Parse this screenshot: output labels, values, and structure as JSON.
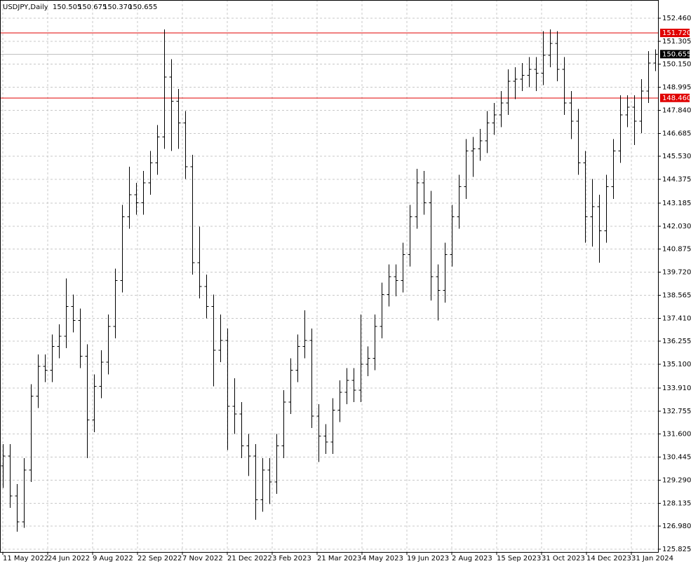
{
  "chart_data": {
    "type": "ohlc",
    "title": "USDJPY,Daily",
    "header_quotes": [
      150.505,
      150.675,
      {
        "value": 150.37,
        "label": "150.370"
      },
      150.655
    ],
    "color": "#000000",
    "grid": true,
    "x": [
      2,
      7,
      12,
      17,
      22,
      27,
      32,
      37,
      42,
      47,
      52,
      57,
      62,
      67,
      72,
      77,
      82,
      87,
      92,
      97,
      102,
      107,
      112,
      117,
      122,
      127,
      132,
      137,
      142,
      147,
      152,
      157,
      162,
      167,
      172,
      177,
      182,
      187,
      192,
      197,
      202,
      207,
      212,
      217,
      222,
      227,
      232,
      237,
      242,
      247,
      252,
      257,
      262,
      267,
      272,
      277,
      282,
      287,
      292,
      297,
      302,
      307,
      312,
      317,
      322,
      327,
      332,
      337,
      342,
      347,
      352,
      357,
      362,
      367,
      372,
      377,
      382,
      387,
      392,
      397,
      402,
      407,
      412,
      417,
      422,
      427,
      432,
      437,
      442,
      447,
      452,
      457,
      462,
      467
    ],
    "open": [
      130.0,
      130.5,
      128.5,
      127.2,
      129.8,
      133.5,
      135.0,
      134.8,
      136.0,
      136.5,
      138.0,
      137.3,
      135.5,
      132.3,
      134.0,
      135.2,
      137.0,
      139.3,
      142.5,
      143.6,
      143.2,
      144.2,
      145.2,
      146.5,
      149.5,
      148.3,
      147.2,
      145.0,
      140.2,
      139.0,
      138.0,
      135.8,
      136.3,
      133.0,
      132.6,
      131.0,
      130.5,
      128.3,
      129.8,
      129.2,
      131.0,
      133.2,
      134.8,
      136.0,
      136.3,
      132.5,
      131.5,
      131.2,
      132.8,
      133.7,
      134.3,
      133.8,
      135.1,
      135.4,
      137.0,
      138.6,
      139.5,
      139.3,
      140.6,
      142.5,
      144.2,
      143.2,
      139.5,
      138.8,
      140.6,
      142.5,
      144.0,
      145.8,
      145.9,
      146.3,
      147.2,
      147.6,
      148.2,
      149.3,
      149.4,
      149.6,
      149.9,
      149.7,
      150.6,
      151.2,
      149.9,
      148.2,
      147.3,
      145.2,
      142.5,
      143.0,
      141.8,
      144.0,
      145.8,
      147.6,
      148.0,
      147.3,
      148.8,
      150.2
    ],
    "high": [
      131.1,
      131.1,
      129.1,
      130.4,
      134.1,
      135.6,
      135.6,
      136.6,
      137.1,
      139.4,
      138.6,
      137.9,
      136.1,
      134.6,
      135.8,
      137.6,
      139.9,
      143.1,
      145.0,
      144.2,
      144.8,
      145.8,
      147.1,
      151.9,
      150.4,
      148.9,
      147.8,
      145.6,
      142.0,
      139.6,
      138.6,
      137.6,
      136.9,
      134.4,
      133.2,
      131.6,
      131.1,
      130.4,
      130.4,
      131.6,
      133.8,
      135.4,
      136.6,
      137.8,
      136.9,
      133.1,
      132.1,
      133.4,
      134.3,
      134.9,
      134.9,
      137.6,
      136.0,
      137.6,
      139.2,
      140.1,
      140.1,
      141.2,
      143.1,
      144.9,
      144.8,
      143.8,
      140.1,
      141.2,
      143.1,
      144.6,
      146.4,
      146.5,
      146.9,
      147.8,
      148.2,
      148.8,
      149.9,
      150.0,
      150.2,
      150.5,
      150.5,
      151.8,
      151.9,
      151.8,
      150.5,
      148.8,
      147.9,
      145.8,
      144.4,
      143.6,
      144.6,
      146.4,
      148.6,
      148.6,
      148.6,
      149.4,
      150.8,
      150.9
    ],
    "low": [
      128.9,
      127.9,
      126.7,
      126.9,
      129.2,
      132.9,
      134.2,
      134.2,
      135.4,
      135.9,
      136.7,
      134.9,
      130.4,
      131.7,
      133.4,
      134.6,
      136.4,
      138.7,
      141.9,
      142.6,
      142.6,
      143.6,
      144.6,
      145.9,
      145.8,
      145.9,
      144.4,
      139.6,
      138.4,
      137.4,
      134.0,
      135.2,
      130.8,
      131.6,
      130.4,
      129.5,
      127.3,
      127.7,
      128.1,
      128.6,
      130.4,
      132.6,
      134.2,
      135.4,
      131.9,
      130.2,
      130.6,
      130.6,
      132.2,
      133.1,
      133.2,
      133.2,
      134.5,
      134.8,
      136.4,
      138.0,
      138.5,
      138.7,
      140.0,
      141.9,
      142.6,
      138.3,
      137.3,
      138.2,
      140.0,
      141.9,
      143.4,
      144.5,
      145.3,
      145.7,
      146.6,
      147.0,
      147.6,
      148.4,
      148.8,
      149.0,
      148.8,
      149.1,
      150.0,
      149.3,
      147.6,
      146.4,
      144.6,
      141.2,
      141.0,
      140.2,
      141.2,
      143.4,
      145.2,
      147.0,
      146.1,
      146.7,
      148.2,
      149.8
    ],
    "close": [
      130.5,
      128.5,
      127.2,
      129.8,
      133.5,
      135.0,
      134.8,
      136.0,
      136.5,
      138.0,
      137.3,
      135.5,
      132.3,
      134.0,
      135.2,
      137.0,
      139.3,
      142.5,
      143.6,
      143.2,
      144.2,
      145.2,
      146.5,
      149.5,
      148.3,
      147.2,
      145.0,
      140.2,
      139.0,
      138.0,
      135.8,
      136.3,
      133.0,
      132.6,
      131.0,
      130.5,
      128.3,
      129.8,
      129.2,
      131.0,
      133.2,
      134.8,
      136.0,
      136.3,
      132.5,
      131.5,
      131.2,
      132.8,
      133.7,
      134.3,
      133.8,
      135.1,
      135.4,
      137.0,
      138.6,
      139.5,
      139.3,
      140.6,
      142.5,
      144.2,
      143.2,
      139.5,
      138.8,
      140.6,
      142.5,
      144.0,
      145.8,
      145.9,
      146.3,
      147.2,
      147.6,
      148.2,
      149.3,
      149.4,
      149.6,
      149.9,
      149.7,
      150.6,
      151.2,
      149.9,
      148.2,
      147.3,
      145.2,
      142.5,
      143.0,
      141.8,
      144.0,
      145.8,
      147.6,
      148.0,
      147.3,
      148.8,
      150.2,
      150.655
    ],
    "xlim": [
      0,
      469
    ],
    "xticks": [
      {
        "value": 2,
        "label": "11 May 2022"
      },
      {
        "value": 34,
        "label": "24 Jun 2022"
      },
      {
        "value": 66,
        "label": "9 Aug 2022"
      },
      {
        "value": 98,
        "label": "22 Sep 2022"
      },
      {
        "value": 130,
        "label": "7 Nov 2022"
      },
      {
        "value": 162,
        "label": "21 Dec 2022"
      },
      {
        "value": 194,
        "label": "3 Feb 2023"
      },
      {
        "value": 226,
        "label": "21 Mar 2023"
      },
      {
        "value": 258,
        "label": "4 May 2023"
      },
      {
        "value": 290,
        "label": "19 Jun 2023"
      },
      {
        "value": 322,
        "label": "2 Aug 2023"
      },
      {
        "value": 354,
        "label": "15 Sep 2023"
      },
      {
        "value": 386,
        "label": "31 Oct 2023"
      },
      {
        "value": 418,
        "label": "14 Dec 2023"
      },
      {
        "value": 450,
        "label": "31 Jan 2024"
      }
    ],
    "ylim": [
      125.685,
      153.37
    ],
    "yticks": [
      {
        "value": 152.46,
        "label": "152.460"
      },
      151.305,
      {
        "value": 150.15,
        "label": "150.150"
      },
      148.995,
      {
        "value": 147.84,
        "label": "147.840"
      },
      146.685,
      {
        "value": 145.53,
        "label": "145.530"
      },
      144.375,
      143.185,
      {
        "value": 142.03,
        "label": "142.030"
      },
      140.875,
      {
        "value": 139.72,
        "label": "139.720"
      },
      138.565,
      {
        "value": 137.41,
        "label": "137.410"
      },
      136.255,
      {
        "value": 135.1,
        "label": "135.100"
      },
      {
        "value": 133.91,
        "label": "133.910"
      },
      132.755,
      {
        "value": 131.6,
        "label": "131.600"
      },
      130.445,
      {
        "value": 129.29,
        "label": "129.290"
      },
      128.135,
      {
        "value": 126.98,
        "label": "126.980"
      },
      125.825
    ],
    "levels": [
      {
        "value": 151.72,
        "label": "151.720",
        "color": "#e00000"
      },
      {
        "value": 148.46,
        "label": "148.460",
        "color": "#e00000"
      }
    ],
    "current_price": {
      "value": 150.655,
      "label": "150.655",
      "color": "#000000",
      "line_color": "#c0c0c0"
    }
  }
}
